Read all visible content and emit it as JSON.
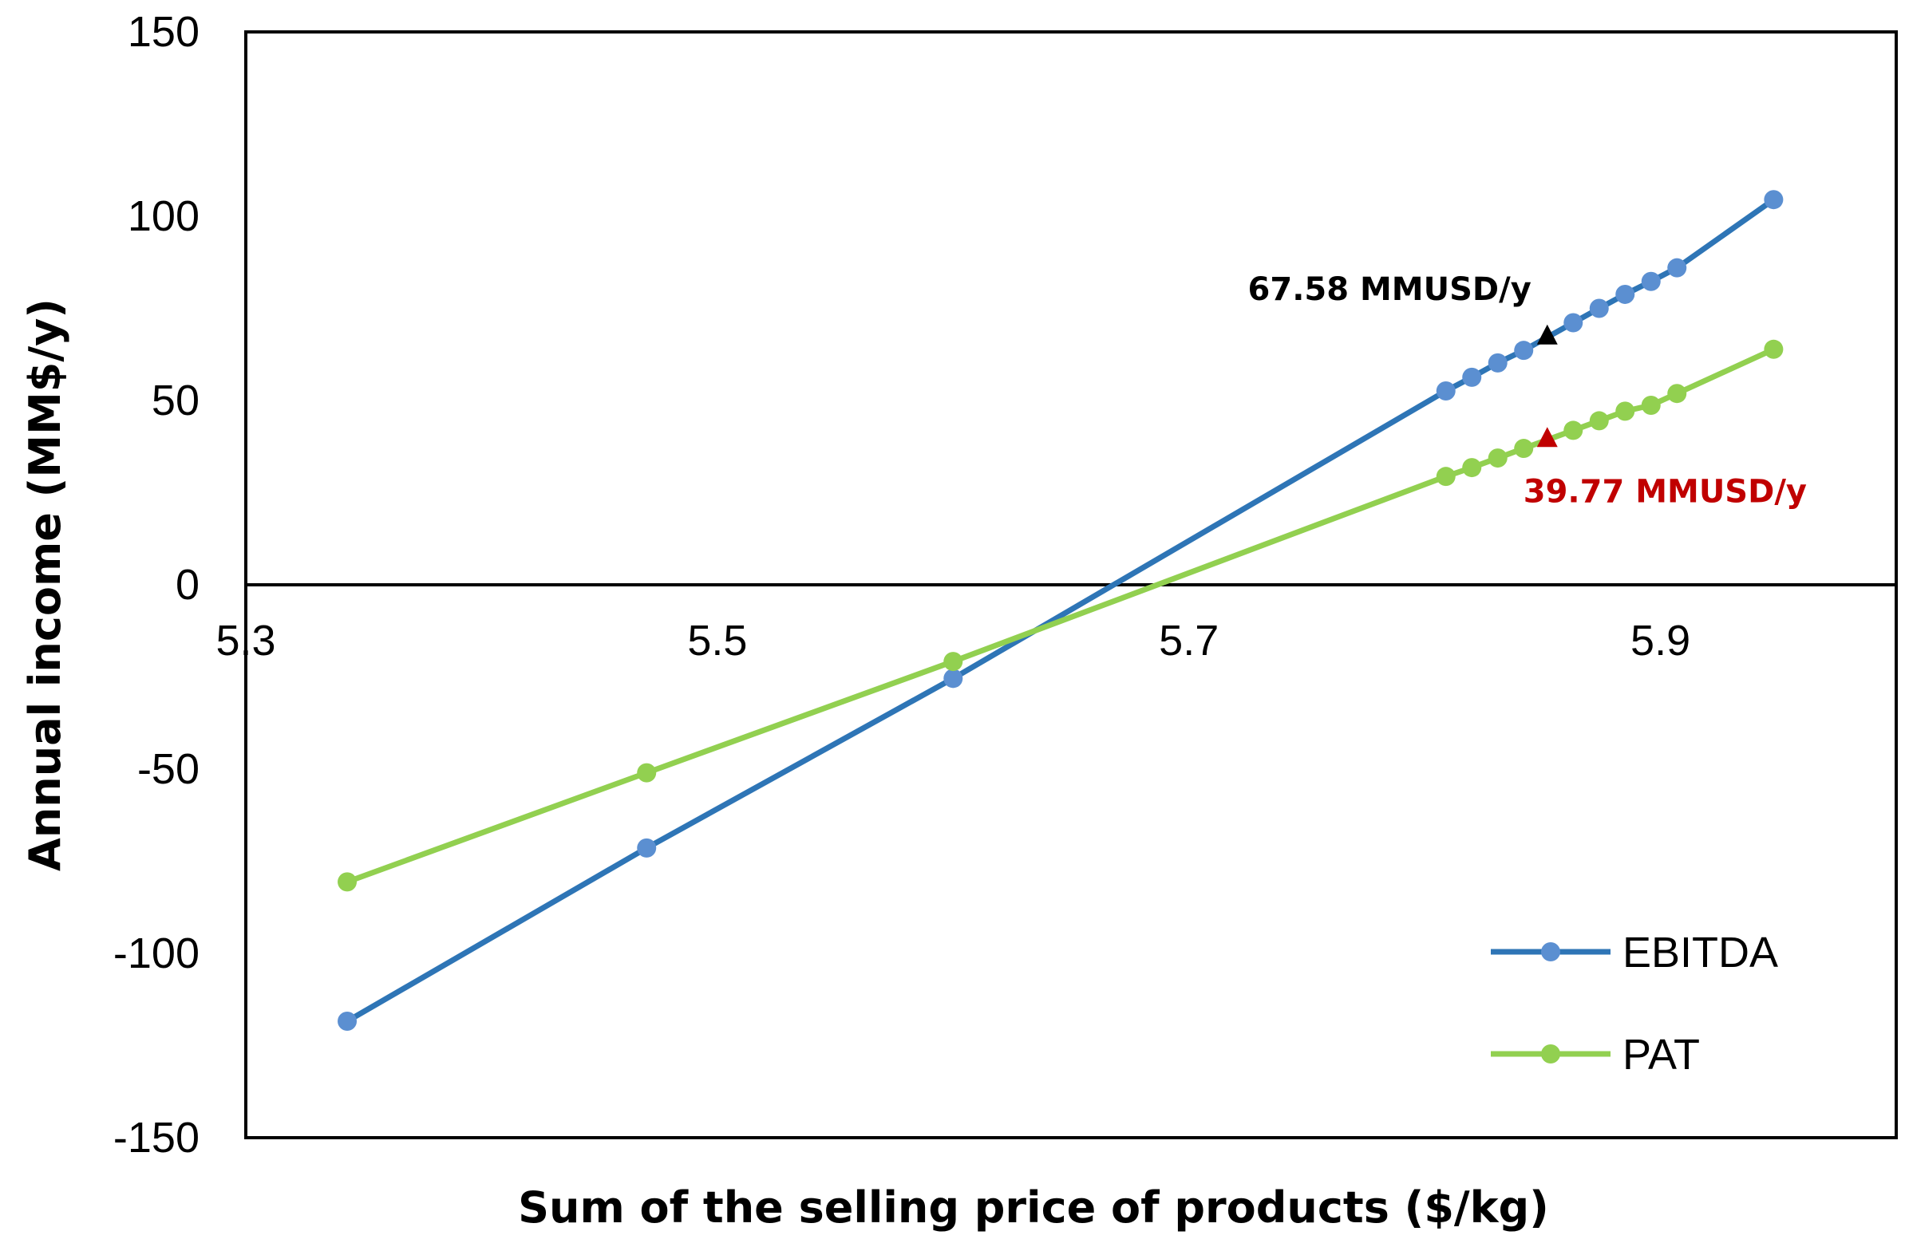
{
  "chart_data": {
    "type": "line",
    "title": "",
    "xlabel": "Sum of the selling price of products ($/kg)",
    "ylabel": "Annual income (MM$/y)",
    "xlim": [
      5.3,
      6.0
    ],
    "ylim": [
      -150,
      150
    ],
    "x_ticks": [
      5.3,
      5.5,
      5.7,
      5.9
    ],
    "x_tick_labels": [
      "5.3",
      "5.5",
      "5.7",
      "5.9"
    ],
    "y_ticks": [
      150,
      100,
      50,
      0,
      -50,
      -100,
      -150
    ],
    "y_tick_labels": [
      "150",
      "100",
      "50",
      "0",
      "-50",
      "-100",
      "-150"
    ],
    "grid": false,
    "legend_position": "bottom-right",
    "series": [
      {
        "name": "EBITDA",
        "color": "#2E75B6",
        "marker_color": "#5B8FD1",
        "x": [
          5.343,
          5.47,
          5.6,
          5.809,
          5.82,
          5.831,
          5.842,
          5.863,
          5.874,
          5.885,
          5.896,
          5.907,
          5.948
        ],
        "y": [
          -118.4,
          -71.4,
          -25.4,
          52.6,
          56.3,
          60.2,
          63.6,
          71.1,
          75.0,
          78.8,
          82.3,
          86.0,
          104.5
        ]
      },
      {
        "name": "PAT",
        "color": "#92D050",
        "marker_color": "#92D050",
        "x": [
          5.343,
          5.47,
          5.6,
          5.809,
          5.82,
          5.831,
          5.842,
          5.863,
          5.874,
          5.885,
          5.896,
          5.907,
          5.948
        ],
        "y": [
          -80.6,
          -51.0,
          -20.8,
          29.4,
          31.8,
          34.4,
          37.0,
          41.9,
          44.5,
          47.1,
          48.7,
          51.9,
          63.9
        ]
      }
    ],
    "annotations": [
      {
        "text": "67.58 MMUSD/y",
        "x": 5.852,
        "y": 67.58,
        "color": "#000000",
        "marker": "triangle",
        "label_side": "upper-left"
      },
      {
        "text": "39.77 MMUSD/y",
        "x": 5.852,
        "y": 39.77,
        "color": "#C00000",
        "marker": "triangle",
        "label_side": "lower-right"
      }
    ]
  }
}
